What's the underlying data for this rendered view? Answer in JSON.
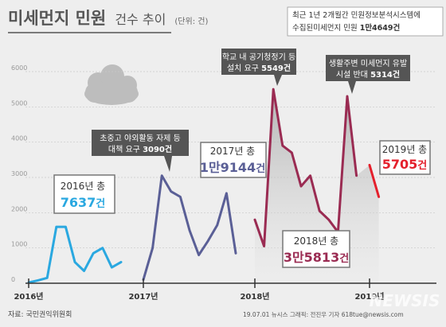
{
  "header": {
    "title": "미세먼지 민원",
    "subtitle": "건수 추이",
    "unit": "(단위: 건)"
  },
  "summary_box": {
    "line1": "최근 1년 2개월간 민원정보분석시스템에",
    "line2_prefix": "수집된미세먼지 민원 ",
    "line2_value": "1만4649건"
  },
  "year_totals": [
    {
      "label": "2016년 총",
      "value": "7637",
      "unit": "건",
      "color": "#2aa8e0"
    },
    {
      "label": "2017년 총",
      "value": "1만9144",
      "unit": "건",
      "color": "#5a5f96"
    },
    {
      "label": "2018년 총",
      "value": "3만5813",
      "unit": "건",
      "color": "#9a2b52"
    },
    {
      "label": "2019년 총",
      "value": "5705",
      "unit": "건",
      "color": "#e4202c"
    }
  ],
  "callouts": [
    {
      "line1": "초중고 야외활동 자제 등",
      "line2_prefix": "대책 요구 ",
      "line2_value": "3090건"
    },
    {
      "line1": "학교 내 공기청정기 등",
      "line2_prefix": "설치 요구 ",
      "line2_value": "5549건"
    },
    {
      "line1": "생활주변 미세먼지 유발",
      "line2_prefix": "시설 반대 ",
      "line2_value": "5314건"
    }
  ],
  "footer": {
    "source": "자료: 국민권익위원회",
    "credit": "19.07.01  뉴시스 그래픽: 전진우 기자 618tue@newsis.com",
    "watermark": "NEWSIS"
  },
  "colors": {
    "background": "#eeeeee",
    "y2016": "#2aa8e0",
    "y2017": "#5a5f96",
    "y2018": "#9a2b52",
    "y2019": "#e4202c",
    "callout_box": "#555555"
  },
  "icons": [
    "cloud-icon"
  ],
  "chart_data": {
    "type": "line",
    "xlabel": "",
    "ylabel": "",
    "ylim": [
      0,
      6000
    ],
    "yticks": [
      0,
      1000,
      2000,
      3000,
      4000,
      5000,
      6000
    ],
    "xticks": [
      "2016년",
      "2017년",
      "2018년",
      "2019년"
    ],
    "grid": true,
    "series": [
      {
        "key": "2016",
        "values": [
          [
            1,
            20
          ],
          [
            2,
            80
          ],
          [
            3,
            150
          ],
          [
            4,
            1600
          ],
          [
            5,
            1600
          ],
          [
            6,
            600
          ],
          [
            7,
            350
          ],
          [
            8,
            850
          ],
          [
            9,
            1000
          ],
          [
            10,
            450
          ],
          [
            11,
            600
          ]
        ]
      },
      {
        "key": "2017",
        "values": [
          [
            1,
            100
          ],
          [
            2,
            1000
          ],
          [
            3,
            3050
          ],
          [
            4,
            2600
          ],
          [
            5,
            2450
          ],
          [
            6,
            1500
          ],
          [
            7,
            800
          ],
          [
            8,
            1200
          ],
          [
            9,
            1650
          ],
          [
            10,
            2550
          ],
          [
            11,
            850
          ]
        ]
      },
      {
        "key": "2018",
        "values": [
          [
            1,
            1800
          ],
          [
            2,
            1050
          ],
          [
            3,
            5500
          ],
          [
            4,
            3900
          ],
          [
            5,
            3700
          ],
          [
            6,
            2750
          ],
          [
            7,
            3050
          ],
          [
            8,
            2050
          ],
          [
            9,
            1800
          ],
          [
            10,
            1450
          ],
          [
            11,
            5300
          ],
          [
            12,
            3050
          ]
        ]
      },
      {
        "key": "2019",
        "values": [
          [
            1,
            3350
          ],
          [
            2,
            2450
          ]
        ]
      }
    ]
  }
}
